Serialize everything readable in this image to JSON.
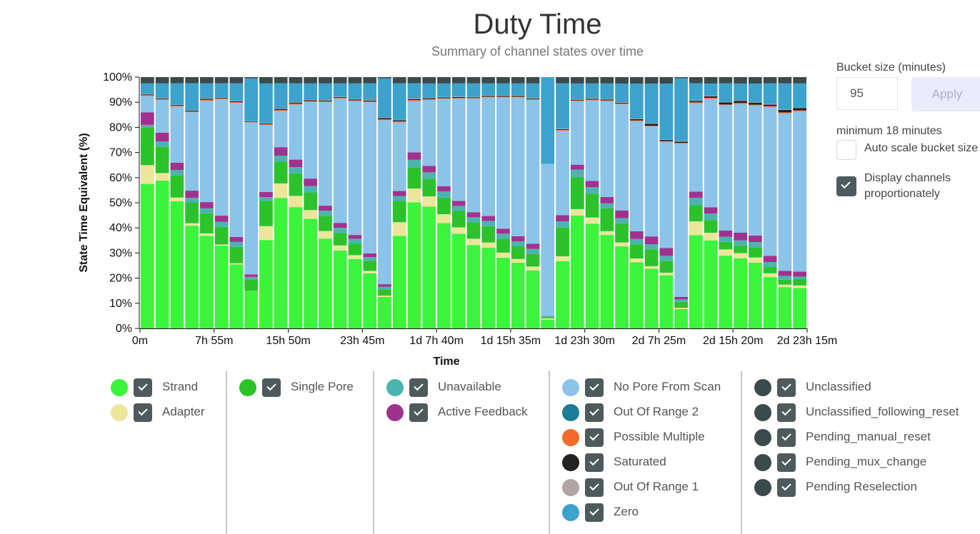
{
  "header": {
    "title": "Duty Time",
    "subtitle": "Summary of channel states over time"
  },
  "controls": {
    "bucket_label": "Bucket size (minutes)",
    "bucket_value": "95",
    "apply_label": "Apply",
    "minimum_text": "minimum 18 minutes",
    "auto_scale_label": "Auto scale bucket size",
    "auto_scale_checked": false,
    "display_prop_label_1": "Display channels",
    "display_prop_label_2": "proportionately",
    "display_prop_checked": true
  },
  "chart_data": {
    "type": "bar",
    "stacked": true,
    "ylabel": "State Time Equivalent (%)",
    "xlabel": "Time",
    "ylim": [
      0,
      100
    ],
    "y_ticks": [
      "0%",
      "10%",
      "20%",
      "30%",
      "40%",
      "50%",
      "60%",
      "70%",
      "80%",
      "90%",
      "100%"
    ],
    "x_ticks": [
      {
        "bar_index": 0,
        "label": "0m"
      },
      {
        "bar_index": 5,
        "label": "7h 55m"
      },
      {
        "bar_index": 10,
        "label": "15h 50m"
      },
      {
        "bar_index": 15,
        "label": "23h 45m"
      },
      {
        "bar_index": 20,
        "label": "1d 7h 40m"
      },
      {
        "bar_index": 25,
        "label": "1d 15h 35m"
      },
      {
        "bar_index": 30,
        "label": "1d 23h 30m"
      },
      {
        "bar_index": 35,
        "label": "2d 7h 25m"
      },
      {
        "bar_index": 40,
        "label": "2d 15h 20m"
      },
      {
        "bar_index": 45,
        "label": "2d 23h 15m"
      }
    ],
    "bar_count": 45,
    "series": [
      {
        "name": "Strand",
        "color": "#3bf43b",
        "values": [
          57.5,
          58.5,
          51,
          42.5,
          37,
          33,
          25.5,
          15,
          35,
          54,
          48.5,
          43.5,
          35.5,
          31,
          27.5,
          22,
          12.5,
          37,
          50.5,
          48,
          41.5,
          37.5,
          33,
          32,
          28,
          26,
          23,
          3.5,
          27,
          44.5,
          41.5,
          37,
          32,
          25.5,
          23,
          20.5,
          8,
          37.5,
          34.5,
          29,
          27.5,
          25.5,
          20.5,
          16.5,
          16
        ]
      },
      {
        "name": "Adapter",
        "color": "#ebe69a",
        "values": [
          7.5,
          3,
          1.5,
          1,
          1,
          0.5,
          0.5,
          0,
          5.5,
          6,
          4.5,
          3.5,
          3,
          2,
          1.5,
          1,
          0.5,
          5.5,
          5.5,
          4,
          3.5,
          2.5,
          2.5,
          2,
          2,
          1.5,
          1.5,
          0.5,
          2,
          2.5,
          2.5,
          1.5,
          1.5,
          1.5,
          1,
          1,
          0.5,
          5.5,
          3,
          2.5,
          2,
          2,
          1.5,
          1,
          1
        ]
      },
      {
        "name": "Single Pore",
        "color": "#2cc22c",
        "values": [
          15,
          10.5,
          9,
          8.5,
          8,
          7,
          6.5,
          4.5,
          10,
          9,
          9,
          7,
          6,
          5,
          4.5,
          4,
          2.5,
          8.5,
          8.5,
          7,
          6.5,
          6.5,
          6.5,
          6.5,
          5.5,
          5,
          5,
          0.5,
          11.5,
          12.5,
          9.5,
          9,
          7.5,
          5.5,
          6.5,
          4.5,
          2.5,
          6.5,
          5,
          3,
          3,
          4,
          2.5,
          2,
          2.5
        ]
      },
      {
        "name": "Unavailable",
        "color": "#4bb4b0",
        "values": [
          1,
          2,
          2,
          2,
          2,
          2,
          2,
          1,
          1.5,
          2.5,
          2.5,
          2.5,
          2,
          2,
          2,
          1.5,
          1,
          2,
          3,
          2.5,
          2.5,
          2,
          2,
          2,
          2,
          2,
          2,
          0.5,
          2.5,
          3,
          2.5,
          2,
          2,
          2,
          2,
          2,
          1,
          3,
          2.5,
          2,
          2,
          2,
          2,
          1.5,
          1
        ]
      },
      {
        "name": "Active Feedback",
        "color": "#a0328f",
        "values": [
          5,
          3.5,
          3,
          3,
          2.5,
          2.5,
          2,
          1,
          2,
          3.5,
          3,
          3,
          2,
          2,
          1.5,
          1.5,
          1,
          2,
          3,
          2.5,
          2,
          2,
          2,
          2,
          2,
          2,
          2,
          0,
          2.5,
          2,
          2.5,
          2.5,
          3,
          3,
          3,
          3,
          1,
          2.5,
          2.5,
          2.5,
          3,
          2.5,
          2.5,
          2,
          2
        ]
      },
      {
        "name": "No Pore From Scan",
        "color": "#8cc3e8",
        "values": [
          6.5,
          13,
          22.5,
          32.5,
          40.5,
          46.5,
          53.5,
          60.5,
          26.5,
          15,
          22,
          30.5,
          41,
          49.5,
          53,
          60.5,
          65,
          27.5,
          20.5,
          26,
          34.5,
          40.5,
          45,
          47,
          52,
          55,
          57,
          60.5,
          34,
          25,
          32,
          38,
          41.5,
          42.5,
          42.5,
          41,
          63.5,
          35.5,
          42.5,
          50,
          50.5,
          50.5,
          59.5,
          63,
          63.5
        ]
      },
      {
        "name": "Out Of Range 2",
        "color": "#1a7d96",
        "values": [
          0,
          0,
          0,
          0,
          0,
          0,
          0,
          0,
          0,
          0,
          0,
          0,
          0,
          0,
          0,
          0,
          0,
          0,
          0,
          0,
          0,
          0,
          0,
          0,
          0,
          0,
          0,
          0,
          0,
          0,
          0,
          0,
          0,
          0,
          0,
          0,
          0,
          0,
          0,
          0,
          0,
          0,
          0,
          0,
          0
        ]
      },
      {
        "name": "Possible Multiple",
        "color": "#f26b2c",
        "values": [
          0.3,
          0.3,
          0.3,
          0.3,
          0.5,
          0.3,
          0.3,
          0.2,
          0.3,
          0.4,
          0.4,
          0.3,
          0.2,
          0.3,
          0.3,
          0.3,
          0.3,
          0.4,
          0.4,
          0.4,
          0.2,
          0.3,
          0.2,
          0.2,
          0.2,
          0.2,
          0.2,
          0,
          0.3,
          0.3,
          0.3,
          0.3,
          0.2,
          0.3,
          0.2,
          0.3,
          0.3,
          0.4,
          0.4,
          0.3,
          0.4,
          0.3,
          0.3,
          0.4,
          0.3
        ]
      },
      {
        "name": "Saturated",
        "color": "#222222",
        "values": [
          0.3,
          0.3,
          0.3,
          0.3,
          0.3,
          0.3,
          0.3,
          0.2,
          0.3,
          0.4,
          0.4,
          0.3,
          0.3,
          0.3,
          0.3,
          0.3,
          0.5,
          0.4,
          0.4,
          0.3,
          0.3,
          0.3,
          0.3,
          0.3,
          0.3,
          0.3,
          0.3,
          0,
          0.3,
          0.3,
          0.3,
          0.3,
          0.3,
          0.5,
          0.8,
          0.5,
          0.5,
          0.5,
          0.6,
          0.8,
          0.8,
          0.8,
          0.6,
          1,
          1
        ]
      },
      {
        "name": "Out Of Range 1",
        "color": "#b2a4a4",
        "values": [
          0.2,
          0.2,
          0.2,
          0.2,
          0.2,
          0.2,
          0.2,
          0.1,
          0.2,
          0.2,
          0.2,
          0.2,
          0.2,
          0.2,
          0.2,
          0.2,
          0.2,
          0.2,
          0.2,
          0.2,
          0.2,
          0.2,
          0.2,
          0.2,
          0.2,
          0.2,
          0.2,
          0,
          0.2,
          0.2,
          0.2,
          0.2,
          0.2,
          0.2,
          0.2,
          0.2,
          0.2,
          0.2,
          0.2,
          0.2,
          0.2,
          0.2,
          0.2,
          0.2,
          0.2
        ]
      },
      {
        "name": "Zero",
        "color": "#3da2cc",
        "values": [
          4.2,
          5.7,
          8.5,
          11.2,
          6,
          5.5,
          7,
          17,
          15.7,
          10.5,
          7.5,
          6.5,
          6.6,
          5.2,
          6.2,
          6.7,
          15.5,
          14.6,
          6.1,
          5.6,
          5.3,
          5.2,
          5.3,
          4.8,
          4.8,
          4.8,
          5.8,
          34.5,
          18.2,
          6.2,
          5.9,
          6.2,
          7.3,
          13.5,
          15.3,
          21.5,
          26,
          6.9,
          4.8,
          7.4,
          6.6,
          7.2,
          8.3,
          10.4,
          9.5
        ]
      },
      {
        "name": "Unclassified",
        "color": "#3b4a4b",
        "values": [
          2.5,
          2.5,
          2.5,
          2.5,
          2.5,
          2.5,
          2.5,
          0.5,
          2.5,
          2.5,
          2.5,
          2.5,
          2.5,
          2.5,
          2.5,
          2.5,
          0.5,
          2.5,
          2.5,
          2.5,
          2.5,
          2.5,
          2.5,
          2.5,
          2.5,
          2.5,
          2.5,
          0,
          2.5,
          2.5,
          2.5,
          2.5,
          2.5,
          2.5,
          2.5,
          2.5,
          0.5,
          2.5,
          2.5,
          2.5,
          2.5,
          2.5,
          2.5,
          2.5,
          2.5
        ]
      },
      {
        "name": "Unclassified_following_reset",
        "color": "#3b4a4b",
        "values": [
          0,
          0,
          0,
          0,
          0,
          0,
          0,
          0,
          0,
          0,
          0,
          0,
          0,
          0,
          0,
          0,
          0,
          0,
          0,
          0,
          0,
          0,
          0,
          0,
          0,
          0,
          0,
          0,
          0,
          0,
          0,
          0,
          0,
          0,
          0,
          0,
          0,
          0,
          0,
          0,
          0,
          0,
          0,
          0,
          0
        ]
      },
      {
        "name": "Pending_manual_reset",
        "color": "#3b4a4b",
        "values": [
          0,
          0,
          0,
          0,
          0,
          0,
          0,
          0,
          0,
          0,
          0,
          0,
          0,
          0,
          0,
          0,
          0,
          0,
          0,
          0,
          0,
          0,
          0,
          0,
          0,
          0,
          0,
          0,
          0,
          0,
          0,
          0,
          0,
          0,
          0,
          0,
          0,
          0,
          0,
          0,
          0,
          0,
          0,
          0,
          0
        ]
      },
      {
        "name": "Pending_mux_change",
        "color": "#3b4a4b",
        "values": [
          0,
          0,
          0,
          0,
          0,
          0,
          0,
          0,
          0,
          0,
          0,
          0,
          0,
          0,
          0,
          0,
          0,
          0,
          0,
          0,
          0,
          0,
          0,
          0,
          0,
          0,
          0,
          0,
          0,
          0,
          0,
          0,
          0,
          0,
          0,
          0,
          0,
          0,
          0,
          0,
          0,
          0,
          0,
          0,
          0
        ]
      },
      {
        "name": "Pending Reselection",
        "color": "#3b4a4b",
        "values": [
          0,
          0,
          0,
          0,
          0,
          0,
          0,
          0,
          0,
          0,
          0,
          0,
          0,
          0,
          0,
          0,
          0,
          0,
          0,
          0,
          0,
          0,
          0,
          0,
          0,
          0,
          0,
          0,
          0,
          0,
          0,
          0,
          0,
          0,
          0,
          0,
          0,
          0,
          0,
          0,
          0,
          0,
          0,
          0,
          0
        ]
      }
    ]
  },
  "legend": {
    "groups": [
      [
        {
          "name": "Strand",
          "color": "#3bf43b",
          "checked": true
        },
        {
          "name": "Adapter",
          "color": "#ebe69a",
          "checked": true
        }
      ],
      [
        {
          "name": "Single Pore",
          "color": "#2cc22c",
          "checked": true
        }
      ],
      [
        {
          "name": "Unavailable",
          "color": "#4bb4b0",
          "checked": true
        },
        {
          "name": "Active Feedback",
          "color": "#a0328f",
          "checked": true
        }
      ],
      [
        {
          "name": "No Pore From Scan",
          "color": "#8cc3e8",
          "checked": true
        },
        {
          "name": "Out Of Range 2",
          "color": "#1a7d96",
          "checked": true
        },
        {
          "name": "Possible Multiple",
          "color": "#f26b2c",
          "checked": true
        },
        {
          "name": "Saturated",
          "color": "#222222",
          "checked": true
        },
        {
          "name": "Out Of Range 1",
          "color": "#b2a4a4",
          "checked": true
        },
        {
          "name": "Zero",
          "color": "#3da2cc",
          "checked": true
        }
      ],
      [
        {
          "name": "Unclassified",
          "color": "#3b4a4b",
          "checked": true
        },
        {
          "name": "Unclassified_following_reset",
          "color": "#3b4a4b",
          "checked": true
        },
        {
          "name": "Pending_manual_reset",
          "color": "#3b4a4b",
          "checked": true
        },
        {
          "name": "Pending_mux_change",
          "color": "#3b4a4b",
          "checked": true
        },
        {
          "name": "Pending Reselection",
          "color": "#3b4a4b",
          "checked": true
        }
      ]
    ]
  }
}
